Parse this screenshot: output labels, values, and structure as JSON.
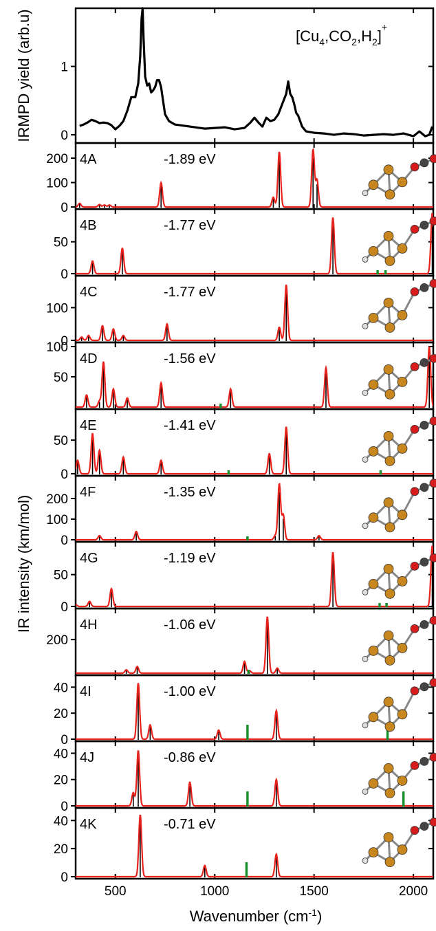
{
  "chart_data": {
    "type": "line",
    "x_axis": {
      "label": "Wavenumber (cm",
      "label_sup": "-1",
      "label_close": ")",
      "range": [
        300,
        2100
      ],
      "ticks": [
        "500",
        "1000",
        "1500",
        "2000"
      ],
      "tick_values": [
        500,
        1000,
        1500,
        2000
      ]
    },
    "left_titles": {
      "top": "IRMPD yield (arb.u)",
      "bottom": "IR intensity (km/mol)"
    },
    "colors": {
      "experiment": "#000000",
      "convolved": "#e8221c",
      "stick": "#000000",
      "co2_marker": "#1a8f2e",
      "cu_atom": "#c8861e",
      "o_atom": "#d61c1c",
      "c_atom": "#444444",
      "h_atom": "#dddddd"
    },
    "experiment": {
      "formula_parts": [
        "[Cu",
        "4",
        ",CO",
        "2",
        ",H",
        "2",
        "]",
        "+"
      ],
      "y_ticks": [
        "0",
        "1"
      ],
      "y_tick_values": [
        0,
        1
      ],
      "ylim": [
        -0.12,
        1.85
      ],
      "points": [
        [
          320,
          0.13
        ],
        [
          340,
          0.15
        ],
        [
          360,
          0.18
        ],
        [
          380,
          0.22
        ],
        [
          400,
          0.2
        ],
        [
          420,
          0.17
        ],
        [
          440,
          0.18
        ],
        [
          460,
          0.17
        ],
        [
          480,
          0.14
        ],
        [
          500,
          0.08
        ],
        [
          520,
          0.13
        ],
        [
          540,
          0.2
        ],
        [
          560,
          0.35
        ],
        [
          580,
          0.55
        ],
        [
          600,
          0.55
        ],
        [
          615,
          0.75
        ],
        [
          625,
          1.15
        ],
        [
          632,
          1.7
        ],
        [
          637,
          1.85
        ],
        [
          642,
          1.4
        ],
        [
          650,
          0.85
        ],
        [
          660,
          0.72
        ],
        [
          670,
          0.75
        ],
        [
          680,
          0.62
        ],
        [
          690,
          0.65
        ],
        [
          700,
          0.7
        ],
        [
          710,
          0.8
        ],
        [
          720,
          0.8
        ],
        [
          730,
          0.7
        ],
        [
          740,
          0.5
        ],
        [
          750,
          0.3
        ],
        [
          770,
          0.2
        ],
        [
          800,
          0.15
        ],
        [
          850,
          0.13
        ],
        [
          900,
          0.11
        ],
        [
          950,
          0.09
        ],
        [
          1000,
          0.1
        ],
        [
          1050,
          0.11
        ],
        [
          1100,
          0.08
        ],
        [
          1150,
          0.1
        ],
        [
          1180,
          0.18
        ],
        [
          1200,
          0.25
        ],
        [
          1220,
          0.18
        ],
        [
          1240,
          0.12
        ],
        [
          1260,
          0.25
        ],
        [
          1280,
          0.2
        ],
        [
          1300,
          0.22
        ],
        [
          1320,
          0.3
        ],
        [
          1340,
          0.45
        ],
        [
          1360,
          0.6
        ],
        [
          1370,
          0.78
        ],
        [
          1380,
          0.6
        ],
        [
          1390,
          0.55
        ],
        [
          1400,
          0.45
        ],
        [
          1410,
          0.32
        ],
        [
          1420,
          0.28
        ],
        [
          1440,
          0.12
        ],
        [
          1460,
          0.05
        ],
        [
          1500,
          0.03
        ],
        [
          1550,
          0.02
        ],
        [
          1600,
          0.0
        ],
        [
          1650,
          0.02
        ],
        [
          1700,
          0.01
        ],
        [
          1750,
          -0.01
        ],
        [
          1800,
          0.0
        ],
        [
          1850,
          0.01
        ],
        [
          1900,
          0.0
        ],
        [
          1950,
          0.02
        ],
        [
          2000,
          -0.02
        ],
        [
          2030,
          0.05
        ],
        [
          2060,
          -0.02
        ],
        [
          2080,
          0.0
        ],
        [
          2095,
          0.12
        ]
      ]
    },
    "panels": [
      {
        "label": "4A",
        "energy": "-1.89 eV",
        "y_ticks": [
          "0",
          "100",
          "200"
        ],
        "y_tick_values": [
          0,
          100,
          200
        ],
        "ylim": [
          0,
          245
        ],
        "peaks": [
          [
            320,
            15
          ],
          [
            420,
            10
          ],
          [
            445,
            8
          ],
          [
            470,
            8
          ],
          [
            730,
            100
          ],
          [
            1295,
            40
          ],
          [
            1325,
            225
          ],
          [
            1495,
            235
          ],
          [
            1515,
            110
          ]
        ],
        "co2": [],
        "molecule": "m4A"
      },
      {
        "label": "4B",
        "energy": "-1.77 eV",
        "y_ticks": [
          "0",
          "50"
        ],
        "y_tick_values": [
          0,
          50
        ],
        "ylim": [
          0,
          95
        ],
        "peaks": [
          [
            385,
            20
          ],
          [
            535,
            40
          ],
          [
            1595,
            88
          ],
          [
            2095,
            95
          ]
        ],
        "co2": [
          1820,
          1860
        ],
        "molecule": "m4B"
      },
      {
        "label": "4C",
        "energy": "-1.77 eV",
        "y_ticks": [
          "0",
          "100"
        ],
        "y_tick_values": [
          0,
          100
        ],
        "ylim": [
          0,
          185
        ],
        "peaks": [
          [
            330,
            10
          ],
          [
            365,
            15
          ],
          [
            435,
            45
          ],
          [
            490,
            35
          ],
          [
            540,
            15
          ],
          [
            760,
            50
          ],
          [
            1325,
            40
          ],
          [
            1360,
            170
          ]
        ],
        "co2": [],
        "molecule": "m4C"
      },
      {
        "label": "4D",
        "energy": "-1.56 eV",
        "y_ticks": [
          "50",
          "100"
        ],
        "y_tick_values": [
          50,
          100
        ],
        "ylim": [
          0,
          100
        ],
        "peaks": [
          [
            355,
            20
          ],
          [
            420,
            10
          ],
          [
            440,
            75
          ],
          [
            490,
            30
          ],
          [
            560,
            15
          ],
          [
            730,
            40
          ],
          [
            1080,
            30
          ],
          [
            1560,
            65
          ],
          [
            2080,
            100
          ]
        ],
        "co2": [
          1030
        ],
        "molecule": "m4D"
      },
      {
        "label": "4E",
        "energy": "-1.41 eV",
        "y_ticks": [
          "0",
          "50"
        ],
        "y_tick_values": [
          0,
          50
        ],
        "ylim": [
          0,
          90
        ],
        "peaks": [
          [
            310,
            20
          ],
          [
            385,
            60
          ],
          [
            420,
            35
          ],
          [
            540,
            25
          ],
          [
            730,
            20
          ],
          [
            1275,
            30
          ],
          [
            1360,
            70
          ]
        ],
        "co2": [
          1070,
          1835
        ],
        "molecule": "m4E"
      },
      {
        "label": "4F",
        "energy": "-1.35 eV",
        "y_ticks": [
          "0",
          "100",
          "200"
        ],
        "y_tick_values": [
          0,
          100,
          200
        ],
        "ylim": [
          0,
          290
        ],
        "peaks": [
          [
            420,
            20
          ],
          [
            605,
            40
          ],
          [
            1305,
            20
          ],
          [
            1325,
            270
          ],
          [
            1345,
            120
          ],
          [
            1525,
            20
          ]
        ],
        "co2": [
          1165
        ],
        "molecule": "m4F"
      },
      {
        "label": "4G",
        "energy": "-1.19 eV",
        "y_ticks": [
          "0",
          "50"
        ],
        "y_tick_values": [
          0,
          50
        ],
        "ylim": [
          0,
          95
        ],
        "peaks": [
          [
            300,
            3
          ],
          [
            370,
            8
          ],
          [
            480,
            28
          ],
          [
            1595,
            85
          ],
          [
            2095,
            95
          ]
        ],
        "co2": [
          1830,
          1865
        ],
        "molecule": "m4G"
      },
      {
        "label": "4H",
        "energy": "-1.06 eV",
        "y_ticks": [
          "200"
        ],
        "y_tick_values": [
          200
        ],
        "ylim": [
          0,
          360
        ],
        "peaks": [
          [
            555,
            20
          ],
          [
            610,
            40
          ],
          [
            1150,
            70
          ],
          [
            1175,
            15
          ],
          [
            1265,
            335
          ],
          [
            1315,
            30
          ]
        ],
        "co2": [
          1170
        ],
        "molecule": "m4H"
      },
      {
        "label": "4I",
        "energy": "-1.00 eV",
        "y_ticks": [
          "0",
          "20",
          "40"
        ],
        "y_tick_values": [
          0,
          20,
          40
        ],
        "ylim": [
          0,
          46
        ],
        "peaks": [
          [
            615,
            43
          ],
          [
            675,
            11
          ],
          [
            1020,
            7
          ],
          [
            1310,
            22
          ]
        ],
        "co2": [
          1165,
          1870
        ],
        "molecule": "m4I"
      },
      {
        "label": "4J",
        "energy": "-0.86 eV",
        "y_ticks": [
          "0",
          "20",
          "40"
        ],
        "y_tick_values": [
          0,
          20,
          40
        ],
        "ylim": [
          0,
          46
        ],
        "peaks": [
          [
            590,
            10
          ],
          [
            615,
            42
          ],
          [
            875,
            18
          ],
          [
            1310,
            20
          ]
        ],
        "co2": [
          1165,
          1950
        ],
        "molecule": "m4J"
      },
      {
        "label": "4K",
        "energy": "-0.71 eV",
        "y_ticks": [
          "0",
          "20",
          "40"
        ],
        "y_tick_values": [
          0,
          20,
          40
        ],
        "ylim": [
          0,
          46
        ],
        "peaks": [
          [
            625,
            44
          ],
          [
            950,
            8
          ],
          [
            1310,
            16
          ]
        ],
        "co2": [
          1160
        ],
        "molecule": "m4K"
      }
    ]
  }
}
